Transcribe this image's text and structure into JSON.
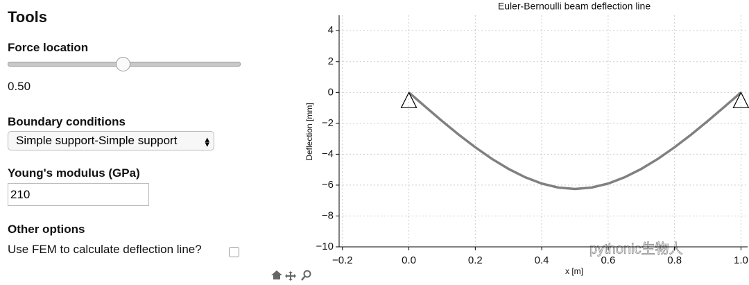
{
  "tools": {
    "title": "Tools",
    "force_location": {
      "label": "Force location",
      "value_text": "0.50"
    },
    "boundary_conditions": {
      "label": "Boundary conditions",
      "selected": "Simple support-Simple support"
    },
    "youngs_modulus": {
      "label": "Young's modulus (GPa)",
      "input": "210"
    },
    "other_options": {
      "label": "Other options",
      "fem_checkbox": "Use FEM to calculate deflection line?"
    }
  },
  "watermark": "pythonic生物人",
  "chart_data": {
    "type": "line",
    "title": "Euler-Bernoulli beam deflection line",
    "x_label": "x [m]",
    "y_label": "Deflection [mm]",
    "x": [
      0,
      0.05,
      0.1,
      0.15,
      0.2,
      0.25,
      0.3,
      0.35,
      0.4,
      0.45,
      0.5,
      0.55,
      0.6,
      0.65,
      0.7,
      0.75,
      0.8,
      0.85,
      0.9,
      0.95,
      1.0
    ],
    "series": [
      {
        "color": "#808080",
        "values": [
          0,
          -0.93,
          -1.85,
          -2.73,
          -3.55,
          -4.3,
          -4.95,
          -5.49,
          -5.9,
          -6.16,
          -6.25,
          -6.16,
          -5.9,
          -5.49,
          -4.95,
          -4.3,
          -3.55,
          -2.73,
          -1.85,
          -0.93,
          0
        ]
      }
    ],
    "xlim": [
      -0.21,
      1.02
    ],
    "ylim": [
      -10,
      5
    ],
    "xticks": [
      {
        "value": -0.2,
        "label": "−0.2"
      },
      {
        "value": 0,
        "label": "0.0"
      },
      0.2,
      0.4,
      0.6,
      0.8,
      {
        "value": 1.0,
        "label": "1.0"
      }
    ],
    "yticks": [
      4,
      2,
      0,
      {
        "value": -2,
        "label": "−2"
      },
      {
        "value": -4,
        "label": "−4"
      },
      {
        "value": -6,
        "label": "−6"
      },
      {
        "value": -8,
        "label": "−8"
      },
      {
        "value": -10,
        "label": "−10"
      }
    ],
    "grid": true
  }
}
